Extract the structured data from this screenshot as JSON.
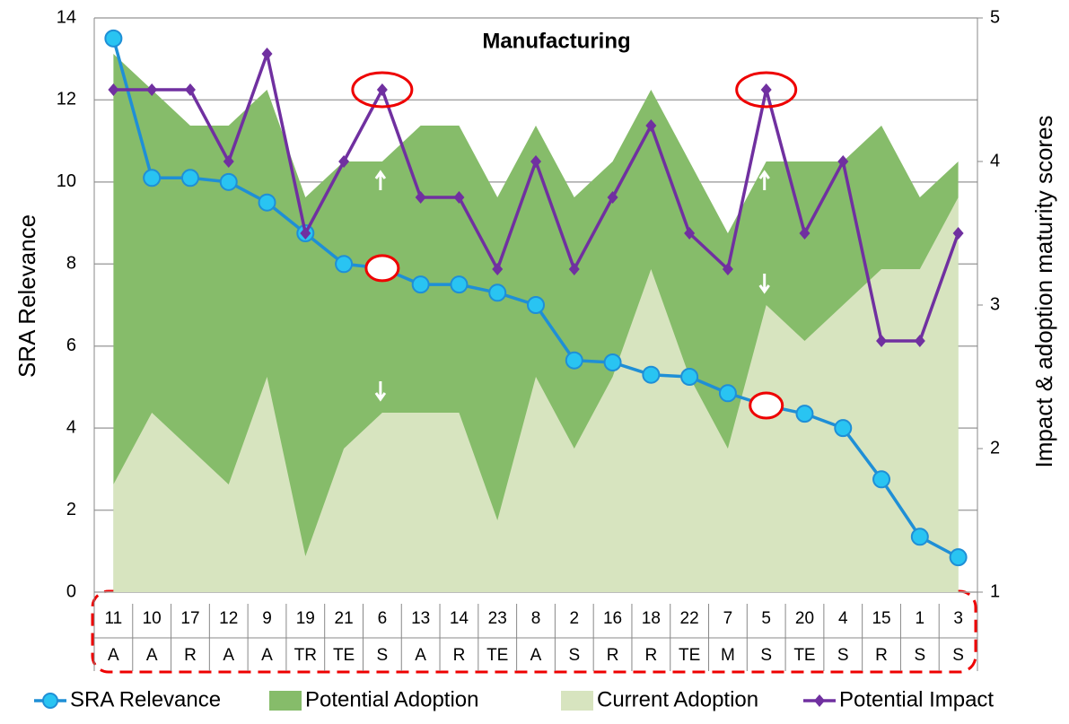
{
  "chart_data": {
    "type": "combo",
    "title": "Manufacturing",
    "y_label": "SRA  Relevance",
    "y2_label": "Impact & adoption maturity scores",
    "categories": [
      "11",
      "10",
      "17",
      "12",
      "9",
      "19",
      "21",
      "6",
      "13",
      "14",
      "23",
      "8",
      "2",
      "16",
      "18",
      "22",
      "7",
      "5",
      "20",
      "4",
      "15",
      "1",
      "3"
    ],
    "groups": [
      "A",
      "A",
      "R",
      "A",
      "A",
      "TR",
      "TE",
      "S",
      "A",
      "R",
      "TE",
      "A",
      "S",
      "R",
      "R",
      "TE",
      "M",
      "S",
      "TE",
      "S",
      "R",
      "S",
      "S"
    ],
    "series": [
      {
        "name": "SRA Relevance",
        "kind": "line",
        "color": "#1f8fd6",
        "marker_color": "#29c4f2",
        "axis": "y",
        "values": [
          13.5,
          10.1,
          10.1,
          10,
          9.5,
          8.75,
          8,
          7.9,
          7.5,
          7.5,
          7.3,
          7,
          5.65,
          5.6,
          5.3,
          5.25,
          4.85,
          4.55,
          4.35,
          4,
          2.75,
          1.35,
          0.85
        ]
      },
      {
        "name": "Potential Adoption",
        "kind": "area",
        "color": "#86bc6a",
        "axis": "y2",
        "values": [
          4.75,
          4.5,
          4.25,
          4.25,
          4.5,
          3.75,
          4,
          4,
          4.25,
          4.25,
          3.75,
          4.25,
          3.75,
          4,
          4.5,
          4,
          3.5,
          4,
          4,
          4,
          4.25,
          3.75,
          4
        ]
      },
      {
        "name": "Current Adoption",
        "kind": "area",
        "color": "#d7e4bf",
        "axis": "y2",
        "values": [
          1.75,
          2.25,
          2,
          1.75,
          2.5,
          1.25,
          2,
          2.25,
          2.25,
          2.25,
          1.5,
          2.5,
          2,
          2.5,
          3.25,
          2.5,
          2,
          3,
          2.75,
          3,
          3.25,
          3.25,
          3.75
        ]
      },
      {
        "name": "Potential Impact",
        "kind": "line",
        "color": "#7030a0",
        "axis": "y2",
        "values": [
          4.5,
          4.5,
          4.5,
          4,
          4.75,
          3.5,
          4,
          4.5,
          3.75,
          3.75,
          3.25,
          4,
          3.25,
          3.75,
          4.25,
          3.5,
          3.25,
          4.5,
          3.5,
          4,
          2.75,
          2.75,
          3.5
        ]
      }
    ],
    "highlighted_categories": [
      "6",
      "5"
    ],
    "ylim": [
      0,
      14
    ],
    "yticks": [
      0,
      2,
      4,
      6,
      8,
      10,
      12,
      14
    ],
    "y2lim": [
      1,
      5
    ],
    "y2ticks": [
      1,
      2,
      3,
      4,
      5
    ],
    "grid": true
  }
}
